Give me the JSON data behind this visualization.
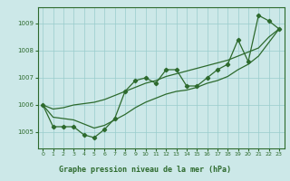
{
  "title": "Graphe pression niveau de la mer (hPa)",
  "bg_color": "#cce8e8",
  "plot_bg_color": "#cce8e8",
  "line_color": "#2d6a2d",
  "xlim": [
    -0.5,
    23.5
  ],
  "ylim": [
    1004.4,
    1009.6
  ],
  "yticks": [
    1005,
    1006,
    1007,
    1008,
    1009
  ],
  "xticks": [
    0,
    1,
    2,
    3,
    4,
    5,
    6,
    7,
    8,
    9,
    10,
    11,
    12,
    13,
    14,
    15,
    16,
    17,
    18,
    19,
    20,
    21,
    22,
    23
  ],
  "y_main": [
    1006.0,
    1005.2,
    1005.2,
    1005.2,
    1004.9,
    1004.8,
    1005.1,
    1005.5,
    1006.5,
    1006.9,
    1007.0,
    1006.8,
    1007.3,
    1007.3,
    1006.7,
    1006.7,
    1007.0,
    1007.3,
    1007.5,
    1008.4,
    1007.6,
    1009.3,
    1009.1,
    1008.8
  ],
  "y_trend_upper": [
    1006.0,
    1005.85,
    1005.9,
    1006.0,
    1006.05,
    1006.1,
    1006.2,
    1006.35,
    1006.5,
    1006.65,
    1006.8,
    1006.9,
    1007.05,
    1007.15,
    1007.25,
    1007.35,
    1007.45,
    1007.55,
    1007.65,
    1007.8,
    1007.95,
    1008.1,
    1008.5,
    1008.8
  ],
  "y_trend_lower": [
    1006.0,
    1005.55,
    1005.5,
    1005.45,
    1005.3,
    1005.15,
    1005.25,
    1005.45,
    1005.65,
    1005.9,
    1006.1,
    1006.25,
    1006.4,
    1006.5,
    1006.55,
    1006.65,
    1006.8,
    1006.9,
    1007.05,
    1007.3,
    1007.5,
    1007.8,
    1008.3,
    1008.8
  ]
}
